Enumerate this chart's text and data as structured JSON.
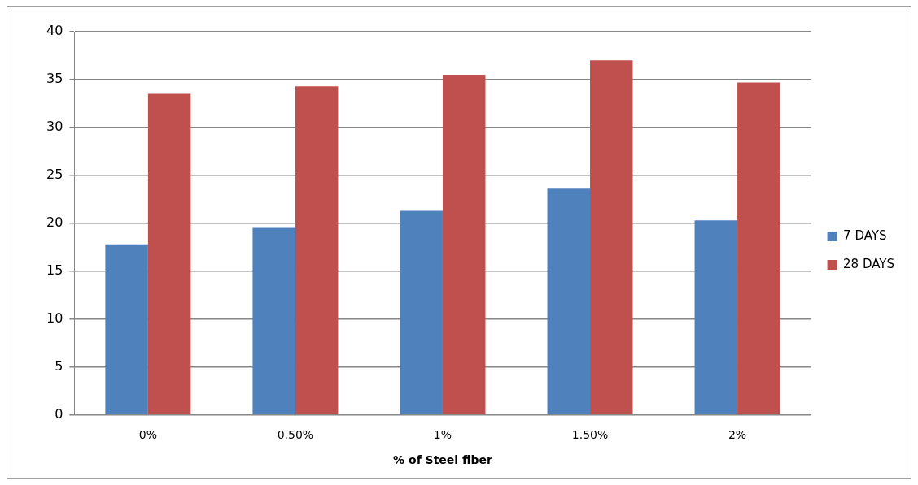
{
  "chart_data": {
    "type": "bar",
    "xlabel": "% of Steel fiber",
    "categories": [
      "0%",
      "0.50%",
      "1%",
      "1.50%",
      "2%"
    ],
    "series": [
      {
        "name": "7 DAYS",
        "color": "#4f81bd",
        "values": [
          17.8,
          19.5,
          21.3,
          23.6,
          20.3
        ]
      },
      {
        "name": "28 DAYS",
        "color": "#c0504d",
        "values": [
          33.5,
          34.3,
          35.5,
          37.0,
          34.7
        ]
      }
    ],
    "ylim": [
      0,
      40
    ],
    "yticks": [
      0,
      5,
      10,
      15,
      20,
      25,
      30,
      35,
      40
    ],
    "grid": "y",
    "legend": "right"
  }
}
